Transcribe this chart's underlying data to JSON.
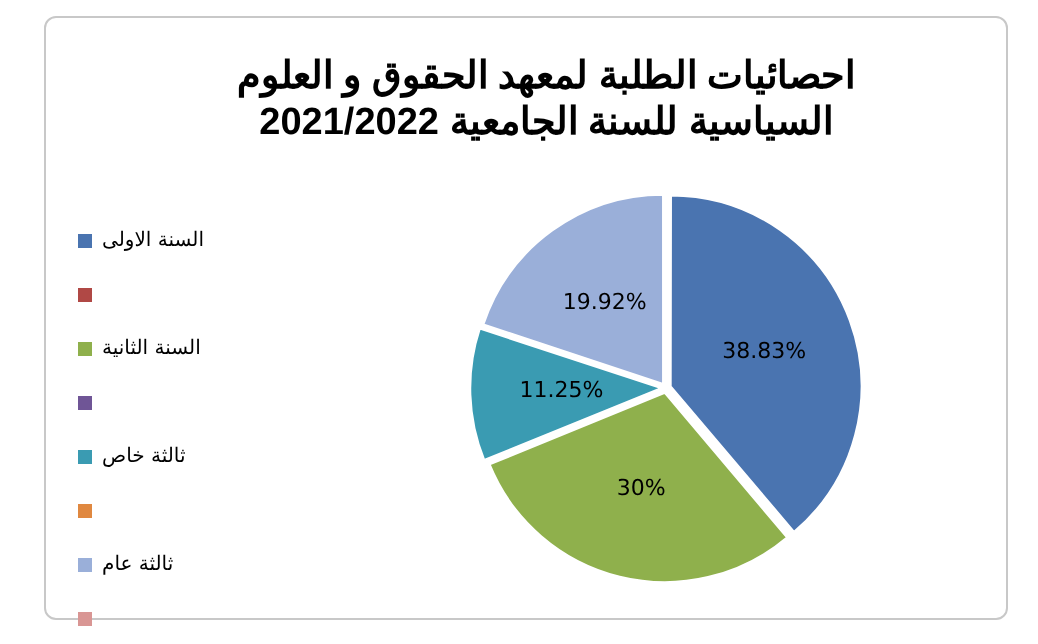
{
  "chart_data": {
    "type": "pie",
    "title": "احصائيات الطلبة لمعهد الحقوق و العلوم السياسية للسنة الجامعية 2021/2022",
    "categories": [
      "السنة الاولى",
      null,
      "السنة الثانية",
      null,
      "ثالثة خاص",
      null,
      "ثالثة عام",
      null
    ],
    "values": [
      38.83,
      null,
      30,
      null,
      11.25,
      null,
      19.92,
      null
    ],
    "value_labels": [
      "38.83%",
      null,
      "30%",
      null,
      "11.25%",
      null,
      "19.92%",
      null
    ],
    "colors": [
      "#4a74b0",
      "#b04845",
      "#8fb04c",
      "#6f5596",
      "#3a9bb2",
      "#e08840",
      "#9aafd9",
      "#d99694"
    ],
    "legend": "left"
  }
}
